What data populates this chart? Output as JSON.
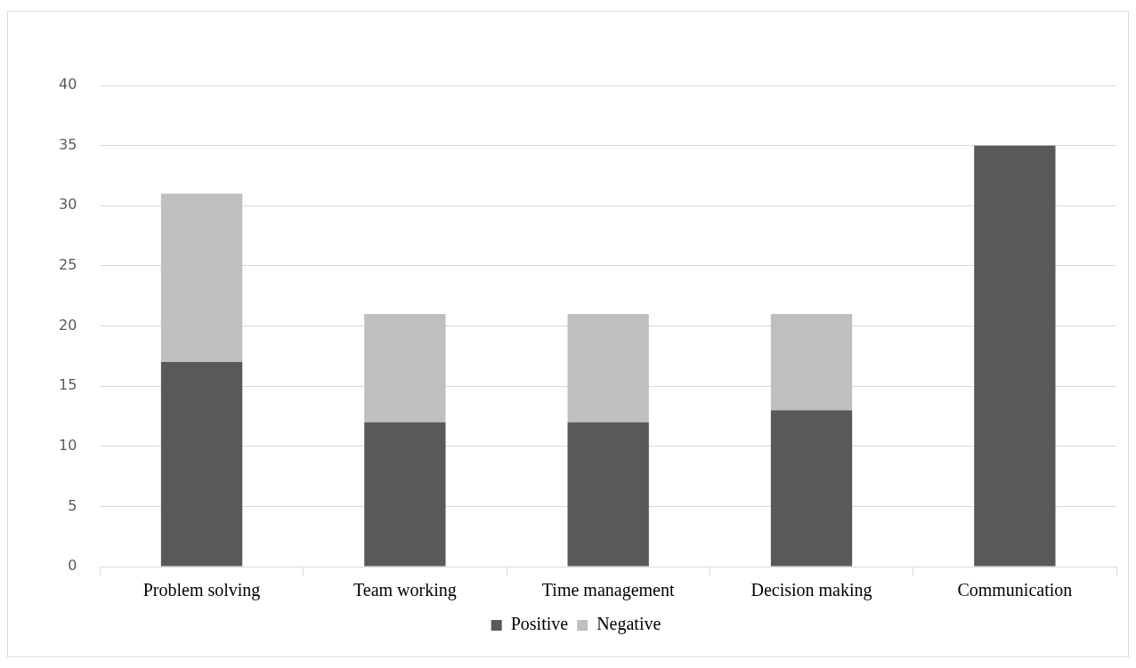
{
  "chart_data": {
    "type": "bar",
    "stacked": true,
    "categories": [
      "Problem solving",
      "Team working",
      "Time management",
      "Decision making",
      "Communication"
    ],
    "series": [
      {
        "name": "Positive",
        "color": "#595959",
        "values": [
          17,
          12,
          12,
          13,
          35
        ]
      },
      {
        "name": "Negative",
        "color": "#bfbfbf",
        "values": [
          14,
          9,
          9,
          8,
          0
        ]
      }
    ],
    "ylim": [
      0,
      40
    ],
    "yticks": [
      0,
      5,
      10,
      15,
      20,
      25,
      30,
      35,
      40
    ],
    "grid": "y",
    "legend": "bottom"
  }
}
